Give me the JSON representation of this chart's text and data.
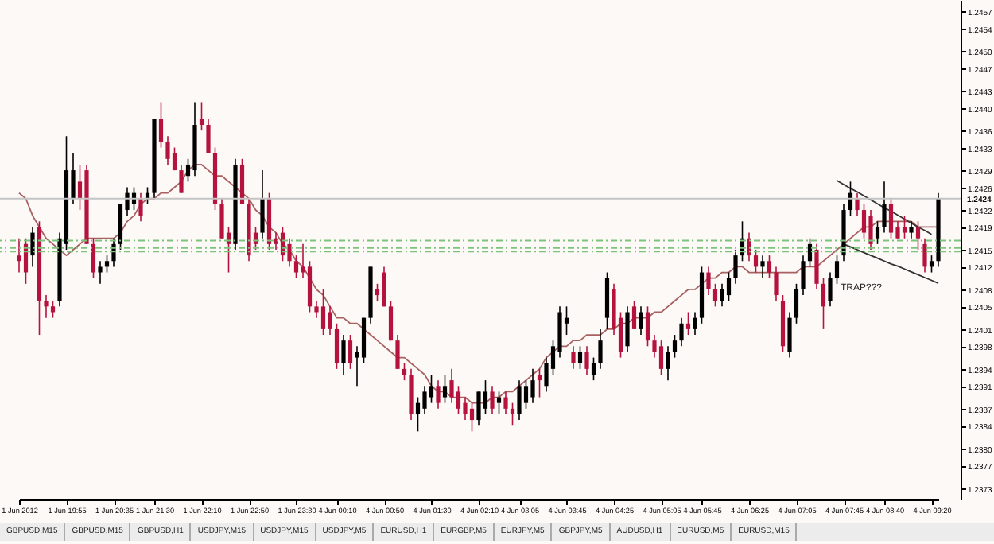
{
  "chart_data": {
    "type": "candlestick",
    "categories": [
      "1 Jun 2012",
      null,
      null,
      null,
      null,
      null,
      null,
      "1 Jun 19:55",
      null,
      null,
      null,
      null,
      null,
      null,
      "1 Jun 20:35",
      null,
      null,
      null,
      null,
      null,
      "1 Jun 21:30",
      null,
      null,
      null,
      null,
      null,
      null,
      "1 Jun 22:10",
      null,
      null,
      null,
      null,
      null,
      null,
      "1 Jun 22:50",
      null,
      null,
      null,
      null,
      null,
      null,
      "1 Jun 23:30",
      null,
      null,
      null,
      null,
      null,
      "4 Jun 00:10",
      null,
      null,
      null,
      null,
      null,
      null,
      "4 Jun 00:50",
      null,
      null,
      null,
      null,
      null,
      null,
      "4 Jun 01:30",
      null,
      null,
      null,
      null,
      null,
      null,
      "4 Jun 02:10",
      null,
      null,
      null,
      null,
      null,
      "4 Jun 03:05",
      null,
      null,
      null,
      null,
      null,
      null,
      "4 Jun 03:45",
      null,
      null,
      null,
      null,
      null,
      null,
      "4 Jun 04:25",
      null,
      null,
      null,
      null,
      null,
      null,
      "4 Jun 05:05",
      null,
      null,
      null,
      null,
      null,
      "4 Jun 05:45",
      null,
      null,
      null,
      null,
      null,
      null,
      "4 Jun 06:25",
      null,
      null,
      null,
      null,
      null,
      null,
      "4 Jun 07:05",
      null,
      null,
      null,
      null,
      null,
      null,
      "4 Jun 07:45",
      null,
      null,
      null,
      null,
      null,
      "4 Jun 08:40",
      null,
      null,
      null,
      null,
      null,
      null,
      "4 Jun 09:20",
      null
    ],
    "ylim": [
      1.2371,
      1.2459
    ],
    "yticks": [
      1.2373,
      1.2377,
      {
        "value": 1.238,
        "label": "1.2380"
      },
      1.2384,
      1.2387,
      1.2391,
      1.2394,
      1.2398,
      1.2401,
      1.2405,
      1.2408,
      1.2412,
      1.2415,
      1.2419,
      1.2422,
      1.2426,
      1.2429,
      1.2433,
      1.2436,
      {
        "value": 1.244,
        "label": "1.2440"
      },
      1.2443,
      1.2447,
      {
        "value": 1.245,
        "label": "1.2450"
      },
      1.2454,
      1.2457
    ],
    "series": [
      {
        "colors": [
          "#b5123e",
          "#b5123e",
          "#000000",
          "#b5123e",
          "#b5123e",
          "#b5123e",
          "#000000",
          "#000000",
          "#000000",
          "#b5123e",
          "#b5123e",
          "#b5123e",
          "#000000",
          "#000000",
          "#000000",
          "#000000",
          "#000000",
          "#000000",
          "#b5123e",
          "#000000",
          "#000000",
          "#b5123e",
          "#b5123e",
          "#b5123e",
          "#b5123e",
          "#000000",
          "#000000",
          "#b5123e",
          "#b5123e",
          "#b5123e",
          "#b5123e",
          "#b5123e",
          "#000000",
          "#b5123e",
          "#b5123e",
          "#b5123e",
          "#000000",
          "#b5123e",
          "#b5123e",
          "#b5123e",
          "#b5123e",
          "#b5123e",
          "#b5123e",
          "#b5123e",
          "#b5123e",
          "#b5123e",
          "#b5123e",
          "#b5123e",
          "#000000",
          "#b5123e",
          "#000000",
          "#000000",
          "#000000",
          "#b5123e",
          "#b5123e",
          "#b5123e",
          "#b5123e",
          "#b5123e",
          "#b5123e",
          "#000000",
          "#000000",
          "#000000",
          "#b5123e",
          "#000000",
          "#b5123e",
          "#b5123e",
          "#b5123e",
          "#b5123e",
          "#000000",
          "#000000",
          "#b5123e",
          "#000000",
          "#b5123e",
          "#b5123e",
          "#000000",
          "#000000",
          "#000000",
          "#b5123e",
          "#000000",
          "#000000",
          "#000000",
          "#000000",
          "#b5123e",
          "#000000",
          "#b5123e",
          "#000000",
          "#000000",
          "#000000",
          "#b5123e",
          "#b5123e",
          "#000000",
          "#b5123e",
          "#000000",
          "#b5123e",
          "#b5123e",
          "#b5123e",
          "#000000",
          "#000000",
          "#000000",
          "#b5123e",
          "#000000",
          "#000000",
          "#b5123e",
          "#b5123e",
          "#000000",
          "#000000",
          "#000000",
          "#000000",
          "#b5123e",
          "#b5123e",
          "#000000",
          "#b5123e",
          "#b5123e",
          "#b5123e",
          "#000000",
          "#000000",
          "#000000",
          "#000000",
          "#b5123e",
          "#b5123e",
          "#000000",
          "#000000",
          "#000000",
          "#000000",
          "#b5123e",
          "#b5123e",
          "#b5123e",
          "#000000",
          "#000000",
          "#b5123e",
          "#b5123e",
          "#b5123e",
          "#000000",
          "#b5123e",
          "#b5123e",
          "#000000",
          "#000000"
        ],
        "ohlc": [
          [
            1.2414,
            1.2417,
            1.2411,
            1.2413
          ],
          [
            1.2416,
            1.2417,
            1.2409,
            1.2411
          ],
          [
            1.2414,
            1.2419,
            1.2412,
            1.2418
          ],
          [
            1.2419,
            1.242,
            1.24,
            1.2406
          ],
          [
            1.2406,
            1.2407,
            1.2403,
            1.2405
          ],
          [
            1.2405,
            1.2406,
            1.2403,
            1.2404
          ],
          [
            1.2406,
            1.2418,
            1.2405,
            1.2417
          ],
          [
            1.2416,
            1.2435,
            1.2415,
            1.2429
          ],
          [
            1.2424,
            1.2432,
            1.2423,
            1.2429
          ],
          [
            1.2427,
            1.243,
            1.2422,
            1.2424
          ],
          [
            1.2429,
            1.243,
            1.2416,
            1.2416
          ],
          [
            1.2416,
            1.2417,
            1.241,
            1.2411
          ],
          [
            1.2411,
            1.2413,
            1.2409,
            1.2412
          ],
          [
            1.2412,
            1.2414,
            1.2411,
            1.2413
          ],
          [
            1.2413,
            1.2417,
            1.2412,
            1.2416
          ],
          [
            1.2416,
            1.2423,
            1.2415,
            1.2423
          ],
          [
            1.2422,
            1.2426,
            1.2421,
            1.2425
          ],
          [
            1.2423,
            1.2426,
            1.2422,
            1.2425
          ],
          [
            1.2424,
            1.2425,
            1.242,
            1.2421
          ],
          [
            1.2424,
            1.2426,
            1.2423,
            1.2425
          ],
          [
            1.2425,
            1.2438,
            1.2424,
            1.2438
          ],
          [
            1.2438,
            1.2441,
            1.2433,
            1.2434
          ],
          [
            1.2434,
            1.2435,
            1.243,
            1.2431
          ],
          [
            1.2432,
            1.2433,
            1.2429,
            1.2429
          ],
          [
            1.2429,
            1.243,
            1.2425,
            1.2425
          ],
          [
            1.2428,
            1.2431,
            1.2427,
            1.243
          ],
          [
            1.2429,
            1.2441,
            1.2428,
            1.2437
          ],
          [
            1.2438,
            1.2441,
            1.2436,
            1.2437
          ],
          [
            1.2437,
            1.2438,
            1.2432,
            1.2432
          ],
          [
            1.2432,
            1.2433,
            1.2422,
            1.2423
          ],
          [
            1.2423,
            1.2424,
            1.2417,
            1.2417
          ],
          [
            1.2418,
            1.2419,
            1.2411,
            1.2416
          ],
          [
            1.2416,
            1.2431,
            1.2415,
            1.243
          ],
          [
            1.243,
            1.2431,
            1.2423,
            1.2423
          ],
          [
            1.2423,
            1.2424,
            1.2413,
            1.2414
          ],
          [
            1.2418,
            1.2419,
            1.2415,
            1.2416
          ],
          [
            1.2418,
            1.2429,
            1.2417,
            1.2424
          ],
          [
            1.2424,
            1.2425,
            1.2415,
            1.2416
          ],
          [
            1.2417,
            1.2418,
            1.2415,
            1.2416
          ],
          [
            1.2418,
            1.2419,
            1.2413,
            1.2414
          ],
          [
            1.2416,
            1.2417,
            1.2412,
            1.2413
          ],
          [
            1.2413,
            1.2414,
            1.241,
            1.2411
          ],
          [
            1.2412,
            1.2416,
            1.241,
            1.2411
          ],
          [
            1.2412,
            1.2413,
            1.2404,
            1.2405
          ],
          [
            1.2405,
            1.2406,
            1.2403,
            1.2404
          ],
          [
            1.2405,
            1.2408,
            1.24,
            1.2401
          ],
          [
            1.2404,
            1.2405,
            1.24,
            1.2401
          ],
          [
            1.2401,
            1.2402,
            1.2394,
            1.2395
          ],
          [
            1.2395,
            1.24,
            1.2393,
            1.2399
          ],
          [
            1.2399,
            1.24,
            1.2394,
            1.2395
          ],
          [
            1.2396,
            1.2398,
            1.2391,
            1.2397
          ],
          [
            1.2396,
            1.2403,
            1.2395,
            1.2403
          ],
          [
            1.2403,
            1.2412,
            1.2402,
            1.2412
          ],
          [
            1.2408,
            1.2409,
            1.2406,
            1.2407
          ],
          [
            1.2411,
            1.2412,
            1.2405,
            1.2405
          ],
          [
            1.2405,
            1.2406,
            1.2399,
            1.2399
          ],
          [
            1.2399,
            1.24,
            1.2394,
            1.2394
          ],
          [
            1.2394,
            1.2395,
            1.2392,
            1.2393
          ],
          [
            1.2393,
            1.2394,
            1.2385,
            1.2386
          ],
          [
            1.2386,
            1.2389,
            1.2383,
            1.2388
          ],
          [
            1.2387,
            1.2391,
            1.2386,
            1.239
          ],
          [
            1.2389,
            1.2393,
            1.2388,
            1.2391
          ],
          [
            1.2391,
            1.2392,
            1.2387,
            1.2388
          ],
          [
            1.2389,
            1.2393,
            1.2388,
            1.2391
          ],
          [
            1.2392,
            1.2394,
            1.2388,
            1.2389
          ],
          [
            1.239,
            1.2391,
            1.2386,
            1.2387
          ],
          [
            1.2388,
            1.2389,
            1.2385,
            1.2386
          ],
          [
            1.2387,
            1.2388,
            1.2383,
            1.2385
          ],
          [
            1.2385,
            1.239,
            1.2384,
            1.239
          ],
          [
            1.2387,
            1.2392,
            1.2386,
            1.239
          ],
          [
            1.239,
            1.2391,
            1.2386,
            1.2387
          ],
          [
            1.2388,
            1.239,
            1.2386,
            1.2389
          ],
          [
            1.2389,
            1.239,
            1.2386,
            1.2387
          ],
          [
            1.2387,
            1.2388,
            1.2384,
            1.2386
          ],
          [
            1.2386,
            1.2392,
            1.2385,
            1.2391
          ],
          [
            1.2388,
            1.2392,
            1.2387,
            1.2391
          ],
          [
            1.2389,
            1.2394,
            1.2388,
            1.2392
          ],
          [
            1.2393,
            1.2394,
            1.2389,
            1.2392
          ],
          [
            1.2391,
            1.2396,
            1.239,
            1.2395
          ],
          [
            1.2394,
            1.2399,
            1.2393,
            1.2398
          ],
          [
            1.2397,
            1.2405,
            1.2396,
            1.2404
          ],
          [
            1.2402,
            1.2405,
            1.24,
            1.2403
          ],
          [
            1.2397,
            1.2398,
            1.2394,
            1.2395
          ],
          [
            1.2395,
            1.2398,
            1.2394,
            1.2397
          ],
          [
            1.2397,
            1.2398,
            1.2393,
            1.2394
          ],
          [
            1.2393,
            1.2396,
            1.2392,
            1.2395
          ],
          [
            1.2395,
            1.2401,
            1.2394,
            1.2399
          ],
          [
            1.2403,
            1.2411,
            1.2401,
            1.241
          ],
          [
            1.2408,
            1.2409,
            1.24,
            1.2401
          ],
          [
            1.2403,
            1.2404,
            1.2396,
            1.2397
          ],
          [
            1.2398,
            1.2405,
            1.2397,
            1.2404
          ],
          [
            1.2405,
            1.2406,
            1.2401,
            1.2401
          ],
          [
            1.2401,
            1.2405,
            1.24,
            1.2404
          ],
          [
            1.2404,
            1.2405,
            1.2398,
            1.2399
          ],
          [
            1.2399,
            1.24,
            1.2396,
            1.2397
          ],
          [
            1.2398,
            1.2399,
            1.2393,
            1.2394
          ],
          [
            1.2394,
            1.2398,
            1.2392,
            1.2397
          ],
          [
            1.2397,
            1.24,
            1.2396,
            1.2399
          ],
          [
            1.2399,
            1.2403,
            1.2398,
            1.2402
          ],
          [
            1.2402,
            1.2404,
            1.24,
            1.2401
          ],
          [
            1.2401,
            1.2404,
            1.24,
            1.2403
          ],
          [
            1.2403,
            1.2412,
            1.2402,
            1.2411
          ],
          [
            1.2411,
            1.2412,
            1.2407,
            1.2408
          ],
          [
            1.2408,
            1.2409,
            1.2405,
            1.2406
          ],
          [
            1.2406,
            1.2409,
            1.2405,
            1.2408
          ],
          [
            1.2407,
            1.2411,
            1.2406,
            1.241
          ],
          [
            1.241,
            1.2415,
            1.2409,
            1.2414
          ],
          [
            1.2414,
            1.242,
            1.2413,
            1.2417
          ],
          [
            1.2417,
            1.2418,
            1.2413,
            1.2414
          ],
          [
            1.2414,
            1.2415,
            1.2411,
            1.2412
          ],
          [
            1.2412,
            1.2414,
            1.241,
            1.2413
          ],
          [
            1.2413,
            1.2414,
            1.241,
            1.2411
          ],
          [
            1.2411,
            1.2412,
            1.2406,
            1.2407
          ],
          [
            1.2406,
            1.2407,
            1.2397,
            1.2398
          ],
          [
            1.2397,
            1.2404,
            1.2396,
            1.2403
          ],
          [
            1.2403,
            1.2409,
            1.2402,
            1.2408
          ],
          [
            1.2408,
            1.2414,
            1.2407,
            1.2413
          ],
          [
            1.2413,
            1.2417,
            1.2412,
            1.2416
          ],
          [
            1.2415,
            1.2416,
            1.2408,
            1.2409
          ],
          [
            1.2409,
            1.241,
            1.2401,
            1.2405
          ],
          [
            1.2406,
            1.2411,
            1.2405,
            1.241
          ],
          [
            1.241,
            1.2414,
            1.2409,
            1.2413
          ],
          [
            1.2414,
            1.2423,
            1.2413,
            1.2422
          ],
          [
            1.2422,
            1.2427,
            1.2421,
            1.2425
          ],
          [
            1.2424,
            1.2425,
            1.2421,
            1.2422
          ],
          [
            1.2422,
            1.2423,
            1.2417,
            1.2418
          ],
          [
            1.2421,
            1.2422,
            1.2415,
            1.2416
          ],
          [
            1.2417,
            1.242,
            1.2416,
            1.2419
          ],
          [
            1.2419,
            1.2427,
            1.2418,
            1.2423
          ],
          [
            1.2423,
            1.2424,
            1.2417,
            1.2418
          ],
          [
            1.2419,
            1.242,
            1.2417,
            1.2417
          ],
          [
            1.2419,
            1.2421,
            1.2417,
            1.2418
          ],
          [
            1.2418,
            1.242,
            1.2417,
            1.2419
          ],
          [
            1.2419,
            1.242,
            1.2415,
            1.2417
          ],
          [
            1.2416,
            1.2417,
            1.2411,
            1.2412
          ],
          [
            1.2412,
            1.2414,
            1.2411,
            1.2413
          ],
          [
            1.2413,
            1.2425,
            1.2412,
            1.2424
          ]
        ]
      },
      {
        "type": "line",
        "color": "#a86060",
        "values": [
          1.2425,
          1.2424,
          1.2421,
          1.2419,
          1.2417,
          1.2416,
          1.2415,
          1.2414,
          1.2415,
          1.2416,
          1.2417,
          1.2417,
          1.2417,
          1.2417,
          1.2417,
          1.2418,
          1.242,
          1.2421,
          1.2423,
          1.2424,
          1.2424,
          1.2425,
          1.2425,
          1.2426,
          1.2427,
          1.2429,
          1.243,
          1.243,
          1.2429,
          1.2428,
          1.2428,
          1.2427,
          1.2426,
          1.2425,
          1.2424,
          1.2422,
          1.2421,
          1.2419,
          1.2418,
          1.2416,
          1.2415,
          1.2413,
          1.2412,
          1.241,
          1.2408,
          1.2407,
          1.2405,
          1.2403,
          1.2403,
          1.2402,
          1.2402,
          1.2401,
          1.24,
          1.2399,
          1.2398,
          1.2397,
          1.2396,
          1.2396,
          1.2395,
          1.2394,
          1.2393,
          1.2391,
          1.239,
          1.239,
          1.2389,
          1.2389,
          1.2389,
          1.2388,
          1.2388,
          1.2388,
          1.2389,
          1.2389,
          1.239,
          1.239,
          1.2391,
          1.2392,
          1.2393,
          1.2394,
          1.2396,
          1.2397,
          1.2398,
          1.2398,
          1.2399,
          1.2399,
          1.24,
          1.24,
          1.24,
          1.2401,
          1.2401,
          1.2402,
          1.2402,
          1.2403,
          1.2403,
          1.2403,
          1.2404,
          1.2404,
          1.2405,
          1.2406,
          1.2407,
          1.2408,
          1.2408,
          1.2409,
          1.241,
          1.241,
          1.2411,
          1.2411,
          1.2412,
          1.2412,
          1.2411,
          1.2411,
          1.2411,
          1.2411,
          1.2411,
          1.2411,
          1.2411,
          1.2411,
          1.2412,
          1.2412,
          1.2412,
          1.2413,
          1.2414,
          1.2415,
          1.2416,
          1.2417,
          1.2418,
          1.2419,
          1.2419,
          1.242,
          1.242,
          1.242,
          1.242,
          1.242,
          1.242,
          1.2419,
          1.2419,
          1.2419,
          1.2419
        ]
      },
      {
        "type": "line",
        "color": "#333333",
        "values": [
          null,
          null,
          null,
          null,
          null,
          null,
          null,
          null,
          null,
          null,
          null,
          null,
          null,
          null,
          null,
          null,
          null,
          null,
          null,
          null,
          null,
          null,
          null,
          null,
          null,
          null,
          null,
          null,
          null,
          null,
          null,
          null,
          null,
          null,
          null,
          null,
          null,
          null,
          null,
          null,
          null,
          null,
          null,
          null,
          null,
          null,
          null,
          null,
          null,
          null,
          null,
          null,
          null,
          null,
          null,
          null,
          null,
          null,
          null,
          null,
          null,
          null,
          null,
          null,
          null,
          null,
          null,
          null,
          null,
          null,
          null,
          null,
          null,
          null,
          null,
          null,
          null,
          null,
          null,
          null,
          null,
          null,
          null,
          null,
          null,
          null,
          null,
          null,
          null,
          null,
          null,
          null,
          null,
          null,
          null,
          null,
          null,
          null,
          null,
          null,
          null,
          null,
          null,
          null,
          null,
          null,
          null,
          null,
          null,
          null,
          null,
          null,
          null,
          null,
          null,
          null,
          null,
          null,
          null,
          null,
          null,
          1.24272,
          1.24265,
          1.24258,
          1.24252,
          1.24245,
          1.24238,
          1.24231,
          1.24224,
          1.24218,
          1.24211,
          1.24204,
          1.24197,
          1.2419,
          1.24184,
          1.24177,
          null
        ]
      },
      {
        "type": "line",
        "color": "#333333",
        "values": [
          null,
          null,
          null,
          null,
          null,
          null,
          null,
          null,
          null,
          null,
          null,
          null,
          null,
          null,
          null,
          null,
          null,
          null,
          null,
          null,
          null,
          null,
          null,
          null,
          null,
          null,
          null,
          null,
          null,
          null,
          null,
          null,
          null,
          null,
          null,
          null,
          null,
          null,
          null,
          null,
          null,
          null,
          null,
          null,
          null,
          null,
          null,
          null,
          null,
          null,
          null,
          null,
          null,
          null,
          null,
          null,
          null,
          null,
          null,
          null,
          null,
          null,
          null,
          null,
          null,
          null,
          null,
          null,
          null,
          null,
          null,
          null,
          null,
          null,
          null,
          null,
          null,
          null,
          null,
          null,
          null,
          null,
          null,
          null,
          null,
          null,
          null,
          null,
          null,
          null,
          null,
          null,
          null,
          null,
          null,
          null,
          null,
          null,
          null,
          null,
          null,
          null,
          null,
          null,
          null,
          null,
          null,
          null,
          null,
          null,
          null,
          null,
          null,
          null,
          null,
          null,
          null,
          null,
          null,
          null,
          null,
          null,
          1.2416,
          1.24155,
          1.2415,
          1.24145,
          1.2414,
          1.24135,
          1.2413,
          1.24125,
          1.24121,
          1.24116,
          1.24111,
          1.24106,
          1.24101,
          1.24096,
          1.24091
        ]
      }
    ],
    "ref_lines": [
      {
        "axis": "y",
        "value": 1.2424,
        "label": "1.2424",
        "color": "#c4c4c4",
        "line_style": "solid"
      },
      {
        "axis": "y",
        "value": 1.24166,
        "label": null,
        "color": "#7cc47c",
        "line_style": "dashed"
      },
      {
        "axis": "y",
        "value": 1.24153,
        "label": null,
        "color": "#7cc47c",
        "line_style": "dashed"
      },
      {
        "axis": "y",
        "value": 1.24147,
        "label": null,
        "color": "#7cc47c",
        "line_style": "dashed"
      }
    ],
    "annotations": [
      "TRAP???",
      "GBPUSD,M15",
      "GBPUSD,M15",
      "GBPUSD,H1",
      "USDJPY,M15",
      "USDJPY,M15",
      "USDJPY,M5",
      "EURUSD,H1",
      "EURGBP,M5",
      "EURJPY,M5",
      "GBPJPY,M5",
      "AUDUSD,H1",
      "EURUSD,M5",
      "EURUSD,M15"
    ]
  }
}
